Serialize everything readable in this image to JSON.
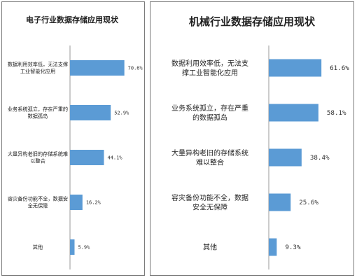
{
  "chart_data": [
    {
      "type": "bar",
      "orientation": "horizontal",
      "title": "电子行业数据存储应用现状",
      "categories": [
        [
          "数据利用效率低，无法支撑",
          "工业智能化应用"
        ],
        [
          "业务系统孤立，存在严重的",
          "数据孤岛"
        ],
        [
          "大量异构老旧的存储系统难",
          "以整合"
        ],
        [
          "容灾备份功能不全，数据安",
          "全无保障"
        ],
        [
          "其他"
        ]
      ],
      "values": [
        70.6,
        52.9,
        44.1,
        16.2,
        5.9
      ],
      "value_labels": [
        "70.6%",
        "52.9%",
        "44.1%",
        "16.2%",
        "5.9%"
      ],
      "xlim": [
        0,
        100
      ],
      "grid": false,
      "bar_color": "#5b9bd5"
    },
    {
      "type": "bar",
      "orientation": "horizontal",
      "title": "机械行业数据存储应用现状",
      "categories": [
        [
          "数据利用效率低，无法支",
          "撑工业智能化应用"
        ],
        [
          "业务系统孤立，存在严重",
          "的数据孤岛"
        ],
        [
          "大量异构老旧的存储系统",
          "难以整合"
        ],
        [
          "容灾备份功能不全，数据",
          "安全无保障"
        ],
        [
          "其他"
        ]
      ],
      "values": [
        61.6,
        58.1,
        38.4,
        25.6,
        9.3
      ],
      "value_labels": [
        "61.6%",
        "58.1%",
        "38.4%",
        "25.6%",
        "9.3%"
      ],
      "xlim": [
        0,
        100
      ],
      "grid": false,
      "bar_color": "#5b9bd5"
    }
  ]
}
